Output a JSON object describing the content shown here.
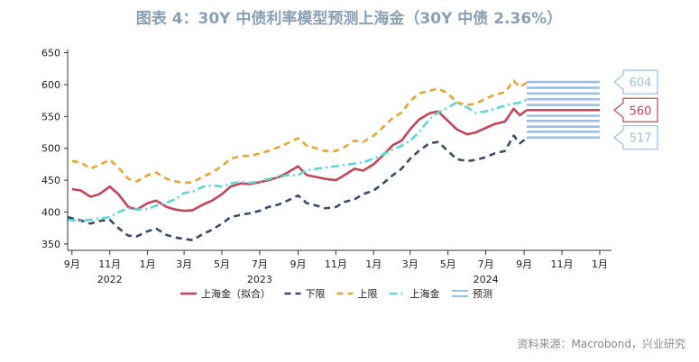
{
  "source": "资料来源：Macrobond，兴业研究",
  "chart_data": {
    "type": "line",
    "title": "图表 4：30Y 中债利率模型预测上海金（30Y 中债 2.36%）",
    "y_ticks": [
      "650",
      "600",
      "550",
      "500",
      "450",
      "400",
      "350"
    ],
    "ylim": [
      340,
      655
    ],
    "x_ticks": [
      "9月",
      "11月",
      "1月",
      "3月",
      "5月",
      "7月",
      "9月",
      "11月",
      "1月",
      "3月",
      "5月",
      "7月",
      "9月",
      "11月",
      "1月"
    ],
    "x_tick_months": [
      "2021-09",
      "2021-11",
      "2022-01",
      "2022-03",
      "2022-05",
      "2022-07",
      "2022-09",
      "2022-11",
      "2023-01",
      "2023-03",
      "2023-05",
      "2023-07",
      "2023-09",
      "2023-11",
      "2024-01"
    ],
    "year_labels": [
      {
        "label": "2022",
        "month": "2021-11"
      },
      {
        "label": "2023",
        "month": "2022-07"
      },
      {
        "label": "2024",
        "month": "2023-07"
      }
    ],
    "x_range": [
      "2021-08-25",
      "2024-01-20"
    ],
    "series": [
      {
        "name": "上海金（拟合）",
        "color": "#c0465a",
        "dash": "solid",
        "points": [
          [
            "2021-09-01",
            436
          ],
          [
            "2021-09-15",
            434
          ],
          [
            "2021-10-01",
            424
          ],
          [
            "2021-10-15",
            428
          ],
          [
            "2021-11-01",
            440
          ],
          [
            "2021-11-15",
            428
          ],
          [
            "2021-12-01",
            408
          ],
          [
            "2021-12-15",
            404
          ],
          [
            "2022-01-01",
            414
          ],
          [
            "2022-01-15",
            418
          ],
          [
            "2022-02-01",
            408
          ],
          [
            "2022-02-15",
            404
          ],
          [
            "2022-03-01",
            402
          ],
          [
            "2022-03-15",
            403
          ],
          [
            "2022-04-01",
            412
          ],
          [
            "2022-04-15",
            418
          ],
          [
            "2022-05-01",
            428
          ],
          [
            "2022-05-15",
            440
          ],
          [
            "2022-06-01",
            445
          ],
          [
            "2022-06-15",
            444
          ],
          [
            "2022-07-01",
            447
          ],
          [
            "2022-07-15",
            450
          ],
          [
            "2022-08-01",
            455
          ],
          [
            "2022-08-15",
            462
          ],
          [
            "2022-09-01",
            472
          ],
          [
            "2022-09-15",
            458
          ],
          [
            "2022-10-01",
            455
          ],
          [
            "2022-10-15",
            452
          ],
          [
            "2022-11-01",
            450
          ],
          [
            "2022-11-15",
            458
          ],
          [
            "2022-12-01",
            468
          ],
          [
            "2022-12-15",
            465
          ],
          [
            "2023-01-01",
            475
          ],
          [
            "2023-01-15",
            488
          ],
          [
            "2023-02-01",
            505
          ],
          [
            "2023-02-15",
            512
          ],
          [
            "2023-03-01",
            530
          ],
          [
            "2023-03-15",
            545
          ],
          [
            "2023-04-01",
            555
          ],
          [
            "2023-04-15",
            558
          ],
          [
            "2023-05-01",
            543
          ],
          [
            "2023-05-15",
            530
          ],
          [
            "2023-06-01",
            522
          ],
          [
            "2023-06-15",
            525
          ],
          [
            "2023-07-01",
            532
          ],
          [
            "2023-07-15",
            538
          ],
          [
            "2023-08-01",
            542
          ],
          [
            "2023-08-15",
            562
          ],
          [
            "2023-08-25",
            552
          ],
          [
            "2023-09-05",
            560
          ]
        ]
      },
      {
        "name": "下限",
        "color": "#3a4c66",
        "dash": "7,5",
        "points": [
          [
            "2021-08-25",
            392
          ],
          [
            "2021-09-15",
            387
          ],
          [
            "2021-10-01",
            382
          ],
          [
            "2021-10-15",
            386
          ],
          [
            "2021-11-01",
            388
          ],
          [
            "2021-11-15",
            375
          ],
          [
            "2021-12-01",
            363
          ],
          [
            "2021-12-15",
            362
          ],
          [
            "2022-01-01",
            370
          ],
          [
            "2022-01-15",
            374
          ],
          [
            "2022-02-01",
            364
          ],
          [
            "2022-02-15",
            360
          ],
          [
            "2022-03-01",
            358
          ],
          [
            "2022-03-15",
            356
          ],
          [
            "2022-04-01",
            366
          ],
          [
            "2022-04-15",
            372
          ],
          [
            "2022-05-01",
            382
          ],
          [
            "2022-05-15",
            392
          ],
          [
            "2022-06-01",
            396
          ],
          [
            "2022-06-15",
            398
          ],
          [
            "2022-07-01",
            402
          ],
          [
            "2022-07-15",
            408
          ],
          [
            "2022-08-01",
            412
          ],
          [
            "2022-08-15",
            418
          ],
          [
            "2022-09-01",
            426
          ],
          [
            "2022-09-15",
            414
          ],
          [
            "2022-10-01",
            410
          ],
          [
            "2022-10-15",
            406
          ],
          [
            "2022-11-01",
            408
          ],
          [
            "2022-11-15",
            416
          ],
          [
            "2022-12-01",
            420
          ],
          [
            "2022-12-15",
            428
          ],
          [
            "2023-01-01",
            434
          ],
          [
            "2023-01-15",
            444
          ],
          [
            "2023-02-01",
            458
          ],
          [
            "2023-02-15",
            468
          ],
          [
            "2023-03-01",
            484
          ],
          [
            "2023-03-15",
            496
          ],
          [
            "2023-04-01",
            508
          ],
          [
            "2023-04-15",
            510
          ],
          [
            "2023-05-01",
            496
          ],
          [
            "2023-05-15",
            483
          ],
          [
            "2023-06-01",
            480
          ],
          [
            "2023-06-15",
            482
          ],
          [
            "2023-07-01",
            486
          ],
          [
            "2023-07-15",
            492
          ],
          [
            "2023-08-01",
            496
          ],
          [
            "2023-08-15",
            520
          ],
          [
            "2023-08-25",
            508
          ],
          [
            "2023-09-05",
            516
          ]
        ]
      },
      {
        "name": "上限",
        "color": "#e6a535",
        "dash": "7,5",
        "points": [
          [
            "2021-09-01",
            480
          ],
          [
            "2021-09-15",
            478
          ],
          [
            "2021-10-01",
            468
          ],
          [
            "2021-10-15",
            474
          ],
          [
            "2021-11-01",
            482
          ],
          [
            "2021-11-15",
            470
          ],
          [
            "2021-12-01",
            452
          ],
          [
            "2021-12-15",
            448
          ],
          [
            "2022-01-01",
            458
          ],
          [
            "2022-01-15",
            462
          ],
          [
            "2022-02-01",
            452
          ],
          [
            "2022-02-15",
            448
          ],
          [
            "2022-03-01",
            446
          ],
          [
            "2022-03-15",
            447
          ],
          [
            "2022-04-01",
            456
          ],
          [
            "2022-04-15",
            462
          ],
          [
            "2022-05-01",
            472
          ],
          [
            "2022-05-15",
            484
          ],
          [
            "2022-06-01",
            488
          ],
          [
            "2022-06-15",
            488
          ],
          [
            "2022-07-01",
            492
          ],
          [
            "2022-07-15",
            496
          ],
          [
            "2022-08-01",
            502
          ],
          [
            "2022-08-15",
            508
          ],
          [
            "2022-09-01",
            516
          ],
          [
            "2022-09-15",
            504
          ],
          [
            "2022-10-01",
            500
          ],
          [
            "2022-10-15",
            496
          ],
          [
            "2022-11-01",
            496
          ],
          [
            "2022-11-15",
            502
          ],
          [
            "2022-12-01",
            512
          ],
          [
            "2022-12-15",
            510
          ],
          [
            "2023-01-01",
            520
          ],
          [
            "2023-01-15",
            532
          ],
          [
            "2023-02-01",
            548
          ],
          [
            "2023-02-15",
            556
          ],
          [
            "2023-03-01",
            574
          ],
          [
            "2023-03-15",
            586
          ],
          [
            "2023-04-01",
            590
          ],
          [
            "2023-04-15",
            594
          ],
          [
            "2023-05-01",
            586
          ],
          [
            "2023-05-15",
            572
          ],
          [
            "2023-06-01",
            568
          ],
          [
            "2023-06-15",
            570
          ],
          [
            "2023-07-01",
            578
          ],
          [
            "2023-07-15",
            584
          ],
          [
            "2023-08-01",
            588
          ],
          [
            "2023-08-15",
            606
          ],
          [
            "2023-08-25",
            596
          ],
          [
            "2023-09-05",
            603
          ]
        ]
      },
      {
        "name": "上海金",
        "color": "#5fd6d0",
        "dash": "9,4,2,4",
        "points": [
          [
            "2021-08-25",
            388
          ],
          [
            "2021-09-15",
            386
          ],
          [
            "2021-10-01",
            388
          ],
          [
            "2021-10-15",
            390
          ],
          [
            "2021-11-01",
            392
          ],
          [
            "2021-11-15",
            400
          ],
          [
            "2021-12-01",
            406
          ],
          [
            "2021-12-15",
            404
          ],
          [
            "2022-01-01",
            405
          ],
          [
            "2022-01-15",
            410
          ],
          [
            "2022-02-01",
            415
          ],
          [
            "2022-02-15",
            420
          ],
          [
            "2022-03-01",
            430
          ],
          [
            "2022-03-15",
            432
          ],
          [
            "2022-04-01",
            440
          ],
          [
            "2022-04-15",
            442
          ],
          [
            "2022-05-01",
            440
          ],
          [
            "2022-05-15",
            445
          ],
          [
            "2022-06-01",
            447
          ],
          [
            "2022-06-15",
            446
          ],
          [
            "2022-07-01",
            448
          ],
          [
            "2022-07-15",
            452
          ],
          [
            "2022-08-01",
            455
          ],
          [
            "2022-08-15",
            458
          ],
          [
            "2022-09-01",
            458
          ],
          [
            "2022-09-15",
            466
          ],
          [
            "2022-10-01",
            468
          ],
          [
            "2022-10-15",
            470
          ],
          [
            "2022-11-01",
            472
          ],
          [
            "2022-11-15",
            474
          ],
          [
            "2022-12-01",
            476
          ],
          [
            "2022-12-15",
            478
          ],
          [
            "2023-01-01",
            484
          ],
          [
            "2023-01-15",
            490
          ],
          [
            "2023-02-01",
            498
          ],
          [
            "2023-02-15",
            504
          ],
          [
            "2023-03-01",
            512
          ],
          [
            "2023-03-15",
            525
          ],
          [
            "2023-04-01",
            546
          ],
          [
            "2023-04-15",
            556
          ],
          [
            "2023-05-01",
            564
          ],
          [
            "2023-05-15",
            572
          ],
          [
            "2023-06-01",
            564
          ],
          [
            "2023-06-15",
            556
          ],
          [
            "2023-07-01",
            558
          ],
          [
            "2023-07-15",
            562
          ],
          [
            "2023-08-01",
            567
          ],
          [
            "2023-08-15",
            570
          ],
          [
            "2023-08-25",
            572
          ],
          [
            "2023-09-05",
            576
          ]
        ]
      }
    ],
    "forecast": {
      "name": "预测",
      "color": "#9fbfe0",
      "start": "2023-09-05",
      "end": "2024-01-01",
      "lines": [
        604,
        595,
        586,
        577,
        568,
        551,
        543,
        534,
        526,
        517
      ],
      "center": 560,
      "center_color": "#c0465a"
    },
    "callouts": [
      {
        "label": "604",
        "value": 604,
        "color": "#9fbfe0"
      },
      {
        "label": "560",
        "value": 560,
        "color": "#c0465a"
      },
      {
        "label": "517",
        "value": 517,
        "color": "#9fbfe0"
      }
    ],
    "legend": [
      "上海金（拟合）",
      "下限",
      "上限",
      "上海金",
      "预测"
    ]
  }
}
